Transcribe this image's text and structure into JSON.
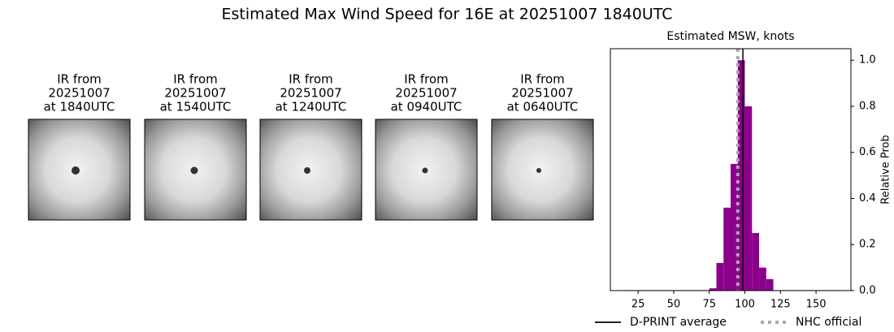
{
  "title": "Estimated Max Wind Speed for 16E at 20251007 1840UTC",
  "panels": [
    {
      "title": [
        "IR from",
        "20251007",
        "at 1840UTC"
      ]
    },
    {
      "title": [
        "IR from",
        "20251007",
        "at 1540UTC"
      ]
    },
    {
      "title": [
        "IR from",
        "20251007",
        "at 1240UTC"
      ]
    },
    {
      "title": [
        "IR from",
        "20251007",
        "at 0940UTC"
      ]
    },
    {
      "title": [
        "IR from",
        "20251007",
        "at 0640UTC"
      ]
    }
  ],
  "chart_data": {
    "type": "histogram",
    "title": "Estimated MSW, knots",
    "ylabel": "Relative Prob",
    "color": "#8b008b",
    "bins": [
      15,
      20,
      25,
      30,
      35,
      40,
      45,
      50,
      55,
      60,
      65,
      70,
      75,
      80,
      85,
      90,
      95,
      100,
      105,
      110,
      115,
      120,
      125,
      130,
      135,
      140,
      145,
      150,
      155,
      160,
      165,
      170
    ],
    "values": [
      0.002,
      0.002,
      0.002,
      0.002,
      0.002,
      0.002,
      0.002,
      0.002,
      0.002,
      0.002,
      0.002,
      0.002,
      0.01,
      0.12,
      0.36,
      0.55,
      1.0,
      0.8,
      0.25,
      0.1,
      0.05,
      0.002,
      0.002,
      0.002,
      0.002,
      0.002,
      0.002,
      0.002,
      0.002,
      0.002,
      0.002
    ],
    "xlim": [
      5.5,
      174.5
    ],
    "xticks": [
      25,
      50,
      75,
      100,
      125,
      150
    ],
    "ylim": [
      0,
      1.05
    ],
    "yticks": [
      {
        "value": 0,
        "label": "0.0"
      },
      {
        "value": 0.2,
        "label": "0.2"
      },
      {
        "value": 0.4,
        "label": "0.4"
      },
      {
        "value": 0.6,
        "label": "0.6"
      },
      {
        "value": 0.8,
        "label": "0.8"
      },
      {
        "value": 1.0,
        "label": "1.0"
      }
    ],
    "reference_lines": [
      {
        "name": "D-PRINT average",
        "value": 98.6,
        "color": "#000000",
        "style": "solid"
      },
      {
        "name": "NHC official",
        "value": 95,
        "color": "#a9a9a9",
        "style": "dotted"
      }
    ]
  }
}
